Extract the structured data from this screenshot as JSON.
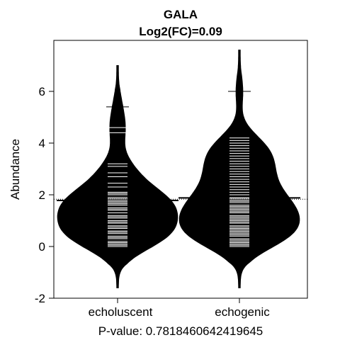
{
  "chart_data": {
    "type": "beanplot",
    "title": "GALA",
    "subtitle": "Log2(FC)=0.09",
    "ylabel": "Abundance",
    "xlabel": "P-value: 0.7818460642419645",
    "categories": [
      "echoluscent",
      "echogenic"
    ],
    "ylim": [
      -2,
      8
    ],
    "yticks": [
      -2,
      0,
      2,
      4,
      6
    ],
    "overall_mean": 1.83,
    "groups": [
      {
        "name": "echoluscent",
        "mean": 1.78,
        "median_marker": 5.4,
        "range": [
          -1.6,
          7.0
        ],
        "observations": [
          0.0,
          0.05,
          0.1,
          0.15,
          0.2,
          0.3,
          0.35,
          0.4,
          0.5,
          0.55,
          0.6,
          0.7,
          0.75,
          0.8,
          0.9,
          0.95,
          1.0,
          1.1,
          1.15,
          1.2,
          1.3,
          1.4,
          1.45,
          1.5,
          1.6,
          1.65,
          1.7,
          1.75,
          1.8,
          1.85,
          1.9,
          2.0,
          2.05,
          2.1,
          2.3,
          2.45,
          2.7,
          2.85,
          3.1,
          3.2,
          4.4,
          4.6,
          5.4
        ]
      },
      {
        "name": "echogenic",
        "mean": 1.88,
        "median_marker": 6.0,
        "range": [
          -1.6,
          7.6
        ],
        "observations": [
          0.0,
          0.05,
          0.1,
          0.15,
          0.2,
          0.25,
          0.3,
          0.4,
          0.45,
          0.5,
          0.55,
          0.6,
          0.65,
          0.7,
          0.75,
          0.8,
          0.9,
          0.95,
          1.0,
          1.05,
          1.1,
          1.15,
          1.2,
          1.3,
          1.35,
          1.4,
          1.45,
          1.5,
          1.55,
          1.6,
          1.7,
          1.75,
          1.8,
          1.85,
          1.9,
          2.0,
          2.1,
          2.2,
          2.3,
          2.4,
          2.5,
          2.6,
          2.7,
          2.8,
          2.9,
          3.0,
          3.1,
          3.2,
          3.3,
          3.4,
          3.5,
          3.6,
          3.7,
          3.8,
          3.9,
          4.0,
          4.1,
          4.2,
          6.0
        ]
      }
    ]
  }
}
